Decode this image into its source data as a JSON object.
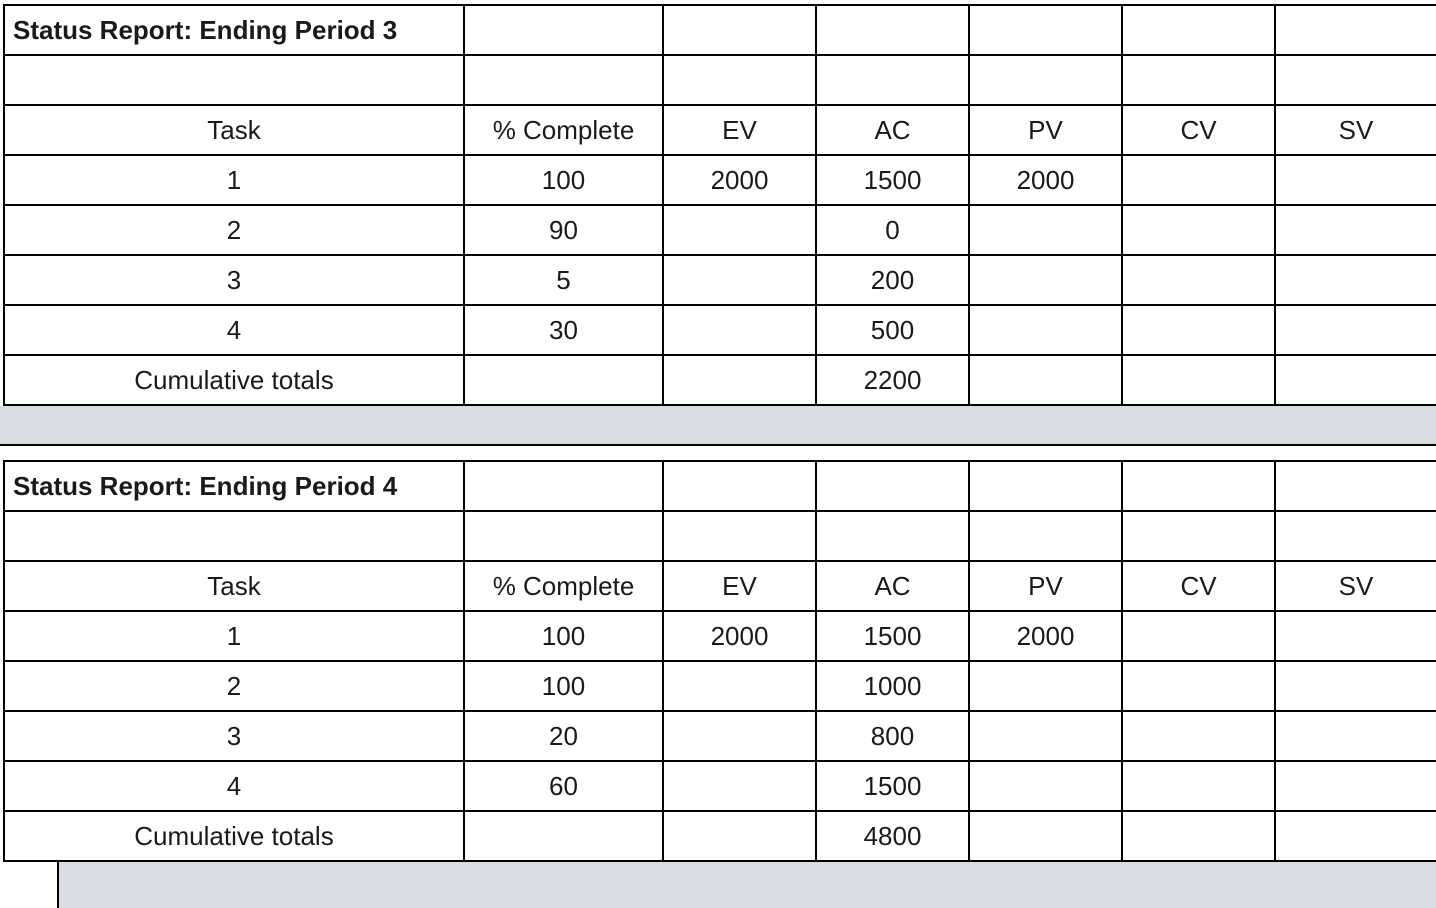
{
  "reports": [
    {
      "title": "Status Report: Ending Period 3",
      "columns": [
        "Task",
        "% Complete",
        "EV",
        "AC",
        "PV",
        "CV",
        "SV"
      ],
      "rows": [
        [
          "1",
          "100",
          "2000",
          "1500",
          "2000",
          "",
          ""
        ],
        [
          "2",
          "90",
          "",
          "0",
          "",
          "",
          ""
        ],
        [
          "3",
          "5",
          "",
          "200",
          "",
          "",
          ""
        ],
        [
          "4",
          "30",
          "",
          "500",
          "",
          "",
          ""
        ]
      ],
      "totals_row": [
        "Cumulative totals",
        "",
        "",
        "2200",
        "",
        "",
        ""
      ]
    },
    {
      "title": "Status Report: Ending Period 4",
      "columns": [
        "Task",
        "% Complete",
        "EV",
        "AC",
        "PV",
        "CV",
        "SV"
      ],
      "rows": [
        [
          "1",
          "100",
          "2000",
          "1500",
          "2000",
          "",
          ""
        ],
        [
          "2",
          "100",
          "",
          "1000",
          "",
          "",
          ""
        ],
        [
          "3",
          "20",
          "",
          "800",
          "",
          "",
          ""
        ],
        [
          "4",
          "60",
          "",
          "1500",
          "",
          "",
          ""
        ]
      ],
      "totals_row": [
        "Cumulative totals",
        "",
        "",
        "4800",
        "",
        "",
        ""
      ]
    }
  ],
  "colors": {
    "separator_fill": "#d9dde3",
    "border": "#000000",
    "background": "#ffffff",
    "text": "#1a1a1a"
  }
}
